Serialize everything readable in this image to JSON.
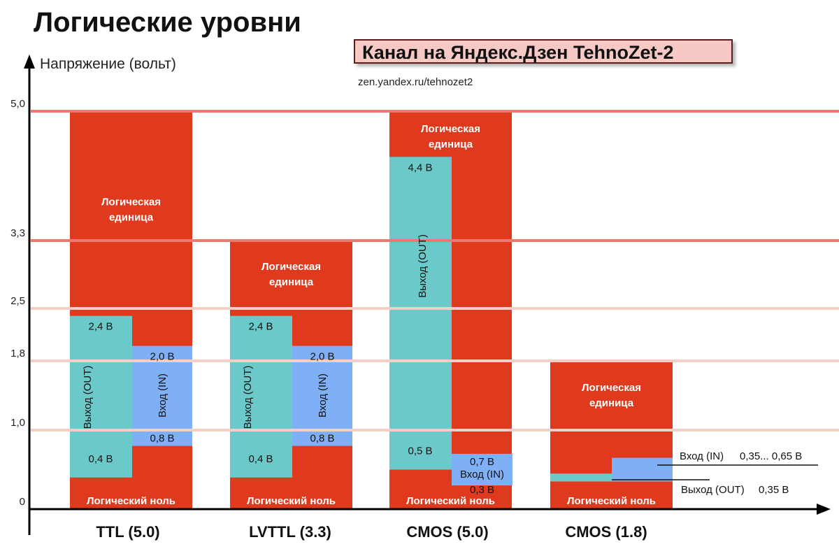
{
  "title": "Логические уровни",
  "channel": "Канал на Яндекс.Дзен TehnoZet-2",
  "url": "zen.yandex.ru/tehnozet2",
  "colors": {
    "logic_red": "#e03a1e",
    "out_teal": "#6cc9c9",
    "in_blue": "#7fb0f6",
    "level_line": "#e87a72",
    "level_line_light": "#f3cfc8"
  },
  "chart_data": {
    "type": "bar",
    "ylabel": "Напряжение (вольт)",
    "yticks": [
      {
        "value": 0,
        "label": "0"
      },
      {
        "value": 1.0,
        "label": "1,0"
      },
      {
        "value": 1.8,
        "label": "1,8"
      },
      {
        "value": 2.5,
        "label": "2,5"
      },
      {
        "value": 3.3,
        "label": "3,3"
      },
      {
        "value": 5.0,
        "label": "5,0"
      }
    ],
    "ylim": [
      0,
      5.0
    ],
    "level_lines": [
      1.0,
      1.8,
      2.5,
      3.3,
      5.0
    ],
    "categories": [
      "TTL (5.0)",
      "LVTTL (3.3)",
      "CMOS (5.0)",
      "CMOS (1.8)"
    ],
    "groups": [
      {
        "name": "TTL (5.0)",
        "vcc": 5.0,
        "high_label": "Логическая единица",
        "low_label": "Логический ноль",
        "out": {
          "label": "Выход (OUT)",
          "low": 0.4,
          "high": 2.4,
          "low_text": "0,4 В",
          "high_text": "2,4 В"
        },
        "in": {
          "label": "Вход (IN)",
          "low": 0.8,
          "high": 2.0,
          "low_text": "0,8 В",
          "high_text": "2,0 В"
        }
      },
      {
        "name": "LVTTL (3.3)",
        "vcc": 3.3,
        "high_label": "Логическая единица",
        "low_label": "Логический ноль",
        "out": {
          "label": "Выход (OUT)",
          "low": 0.4,
          "high": 2.4,
          "low_text": "0,4 В",
          "high_text": "2,4 В"
        },
        "in": {
          "label": "Вход (IN)",
          "low": 0.8,
          "high": 2.0,
          "low_text": "0,8 В",
          "high_text": "2,0 В"
        }
      },
      {
        "name": "CMOS (5.0)",
        "vcc": 5.0,
        "high_label": "Логическая единица",
        "low_label": "Логический ноль",
        "out": {
          "label": "Выход (OUT)",
          "low": 0.5,
          "high": 4.4,
          "low_text": "0,5 В",
          "high_text": "4,4 В"
        },
        "in": {
          "label": "Вход (IN)",
          "low": 0.3,
          "high": 0.7,
          "low_text": "0,3 В",
          "high_text": "0,7 В"
        }
      },
      {
        "name": "CMOS (1.8)",
        "vcc": 1.8,
        "high_label": "Логическая единица",
        "low_label": "Логический ноль",
        "out": {
          "label": "Выход (OUT)",
          "low": 0.35,
          "high": 0.45,
          "text": "0,35 В"
        },
        "in": {
          "label": "Вход (IN)",
          "low": 0.35,
          "high": 0.65,
          "text": "0,35...  0,65 В"
        }
      }
    ]
  }
}
